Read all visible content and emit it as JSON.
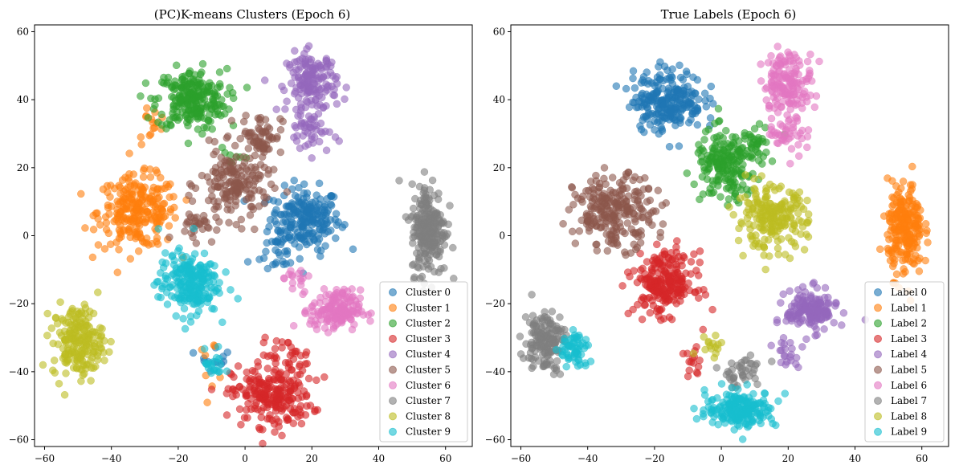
{
  "colors": [
    "#1f77b4",
    "#ff7f0e",
    "#2ca02c",
    "#d62728",
    "#9467bd",
    "#8c564b",
    "#e377c2",
    "#7f7f7f",
    "#bcbd22",
    "#17becf"
  ],
  "chart_data": [
    {
      "type": "scatter",
      "title": "(PC)K-means Clusters (Epoch 6)",
      "xlim": [
        -63,
        68
      ],
      "ylim": [
        -62,
        62
      ],
      "xticks": [
        -60,
        -40,
        -20,
        0,
        20,
        40,
        60
      ],
      "yticks": [
        -60,
        -40,
        -20,
        0,
        20,
        40,
        60
      ],
      "grid": false,
      "legend_position": "lower-right",
      "series": [
        {
          "name": "Cluster 0",
          "clusters": [
            [
              18,
              5,
              7,
              6,
              210
            ],
            [
              10,
              -5,
              6,
              5,
              30
            ],
            [
              -9,
              -35,
              3,
              3,
              12
            ]
          ]
        },
        {
          "name": "Cluster 1",
          "clusters": [
            [
              -32,
              7,
              8,
              7,
              250
            ],
            [
              -28,
              33,
              3,
              4,
              15
            ],
            [
              -10,
              -37,
              3,
              4,
              8
            ]
          ]
        },
        {
          "name": "Cluster 2",
          "clusters": [
            [
              -16,
              40,
              7,
              6,
              240
            ],
            [
              -5,
              22,
              3,
              3,
              8
            ]
          ]
        },
        {
          "name": "Cluster 3",
          "clusters": [
            [
              8,
              -47,
              8,
              6,
              230
            ],
            [
              12,
              -35,
              5,
              3,
              30
            ]
          ]
        },
        {
          "name": "Cluster 4",
          "clusters": [
            [
              20,
              45,
              5,
              6,
              160
            ],
            [
              20,
              30,
              4,
              4,
              40
            ]
          ]
        },
        {
          "name": "Cluster 5",
          "clusters": [
            [
              -3,
              15,
              7,
              7,
              170
            ],
            [
              5,
              30,
              4,
              4,
              60
            ],
            [
              -15,
              3,
              4,
              3,
              30
            ]
          ]
        },
        {
          "name": "Cluster 6",
          "clusters": [
            [
              27,
              -22,
              5,
              4,
              160
            ],
            [
              15,
              -12,
              3,
              2,
              15
            ]
          ]
        },
        {
          "name": "Cluster 7",
          "clusters": [
            [
              55,
              2,
              3.5,
              9,
              230
            ]
          ]
        },
        {
          "name": "Cluster 8",
          "clusters": [
            [
              -50,
              -31,
              5,
              7,
              200
            ]
          ]
        },
        {
          "name": "Cluster 9",
          "clusters": [
            [
              -17,
              -14,
              6,
              6,
              220
            ],
            [
              -9,
              -38,
              2,
              3,
              20
            ]
          ]
        }
      ]
    },
    {
      "type": "scatter",
      "title": "True Labels (Epoch 6)",
      "xlim": [
        -63,
        68
      ],
      "ylim": [
        -62,
        62
      ],
      "xticks": [
        -60,
        -40,
        -20,
        0,
        20,
        40,
        60
      ],
      "yticks": [
        -60,
        -40,
        -20,
        0,
        20,
        40,
        60
      ],
      "grid": false,
      "legend_position": "lower-right",
      "series": [
        {
          "name": "Label 0",
          "clusters": [
            [
              -16,
              40,
              7,
              6,
              240
            ]
          ]
        },
        {
          "name": "Label 1",
          "clusters": [
            [
              55,
              2,
              3.5,
              9,
              230
            ]
          ]
        },
        {
          "name": "Label 2",
          "clusters": [
            [
              1,
              20,
              6,
              7,
              180
            ],
            [
              10,
              28,
              4,
              4,
              40
            ]
          ]
        },
        {
          "name": "Label 3",
          "clusters": [
            [
              -17,
              -14,
              6,
              6,
              230
            ],
            [
              -9,
              -38,
              2,
              3,
              15
            ]
          ]
        },
        {
          "name": "Label 4",
          "clusters": [
            [
              27,
              -22,
              5,
              4,
              160
            ],
            [
              20,
              -35,
              3,
              3,
              20
            ]
          ]
        },
        {
          "name": "Label 5",
          "clusters": [
            [
              -32,
              7,
              8,
              7,
              240
            ]
          ]
        },
        {
          "name": "Label 6",
          "clusters": [
            [
              20,
              45,
              5,
              6,
              160
            ],
            [
              20,
              30,
              4,
              4,
              40
            ]
          ]
        },
        {
          "name": "Label 7",
          "clusters": [
            [
              -53,
              -31,
              4,
              6,
              150
            ],
            [
              6,
              -40,
              5,
              3,
              40
            ]
          ]
        },
        {
          "name": "Label 8",
          "clusters": [
            [
              15,
              5,
              7,
              6,
              210
            ],
            [
              -3,
              -32,
              3,
              2,
              15
            ]
          ]
        },
        {
          "name": "Label 9",
          "clusters": [
            [
              6,
              -51,
              7,
              3.5,
              200
            ],
            [
              -44,
              -34,
              3,
              4,
              60
            ]
          ]
        }
      ]
    }
  ]
}
